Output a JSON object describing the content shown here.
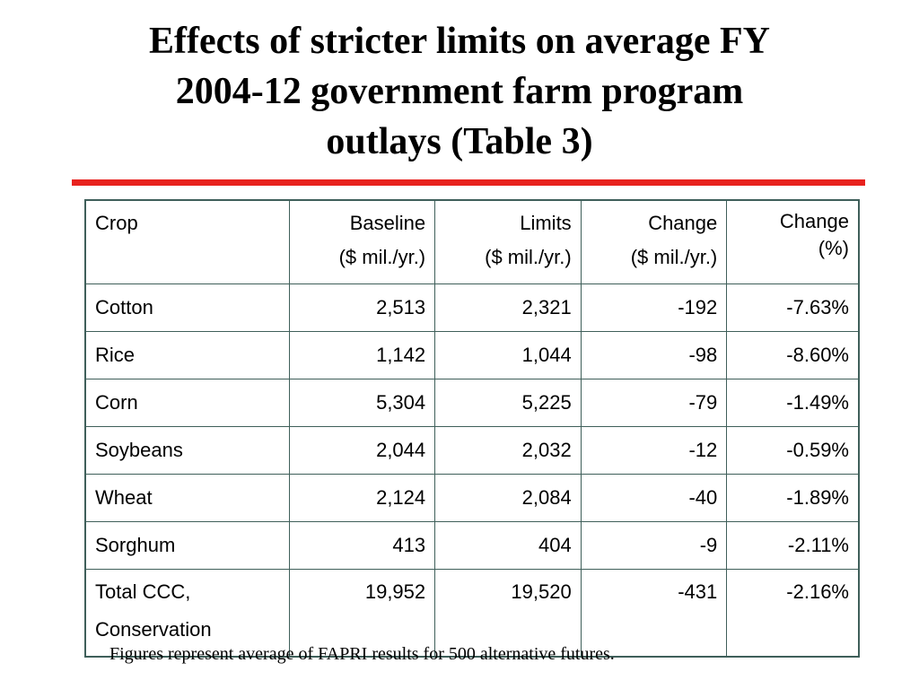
{
  "slide": {
    "title_lines": [
      "Effects of stricter limits on average FY",
      "2004-12 government farm program",
      "outlays (Table 3)"
    ],
    "accent_color": "#e8221e",
    "table_border_color": "#3f5f5a"
  },
  "table": {
    "headers": {
      "crop": "Crop",
      "baseline_1": "Baseline",
      "baseline_2": "($ mil./yr.)",
      "limits_1": "Limits",
      "limits_2": "($ mil./yr.)",
      "change_1": "Change",
      "change_2": "($ mil./yr.)",
      "pct_1": "Change",
      "pct_2": "(%)"
    },
    "rows": [
      {
        "crop": "Cotton",
        "baseline": "2,513",
        "limits": "2,321",
        "change": "-192",
        "pct": "-7.63%"
      },
      {
        "crop": "Rice",
        "baseline": "1,142",
        "limits": "1,044",
        "change": "-98",
        "pct": "-8.60%"
      },
      {
        "crop": "Corn",
        "baseline": "5,304",
        "limits": "5,225",
        "change": "-79",
        "pct": "-1.49%"
      },
      {
        "crop": "Soybeans",
        "baseline": "2,044",
        "limits": "2,032",
        "change": "-12",
        "pct": "-0.59%"
      },
      {
        "crop": "Wheat",
        "baseline": "2,124",
        "limits": "2,084",
        "change": "-40",
        "pct": "-1.89%"
      },
      {
        "crop": "Sorghum",
        "baseline": "413",
        "limits": "404",
        "change": "-9",
        "pct": "-2.11%"
      }
    ],
    "total": {
      "crop_1": "Total CCC,",
      "crop_2": "Conservation",
      "baseline": "19,952",
      "limits": "19,520",
      "change": "-431",
      "pct": "-2.16%"
    }
  },
  "footnote": "Figures represent average of FAPRI results for 500 alternative futures."
}
